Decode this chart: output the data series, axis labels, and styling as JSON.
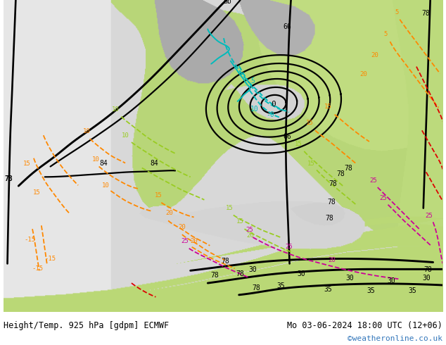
{
  "title_left": "Height/Temp. 925 hPa [gdpm] ECMWF",
  "title_right": "Mo 03-06-2024 18:00 UTC (12+06)",
  "watermark": "©weatheronline.co.uk",
  "figsize": [
    6.34,
    4.9
  ],
  "dpi": 100,
  "map_bg": "#d8d8d8",
  "land_green_light": "#b8d878",
  "land_green_mid": "#c0dc80",
  "land_grey": "#a8a8a8",
  "land_grey2": "#b8b8b8",
  "sea_grey": "#d8d8d8",
  "white_left": "#e8e8e8",
  "bottom_white": "#ffffff",
  "text_left_color": "#000000",
  "text_right_color": "#000000",
  "watermark_color": "#3377bb",
  "black_lw": 1.6,
  "color_orange": "#ff8800",
  "color_lime": "#99cc22",
  "color_cyan": "#00bbbb",
  "color_magenta": "#cc0099",
  "color_red": "#dd0000"
}
